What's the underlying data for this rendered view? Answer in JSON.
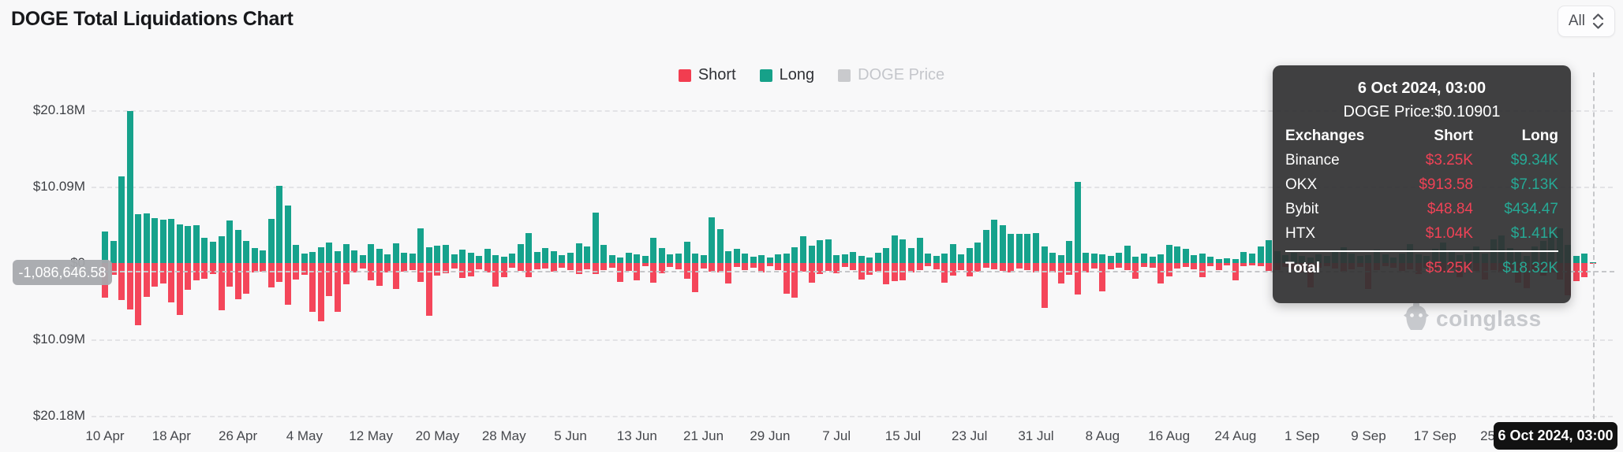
{
  "header": {
    "title": "DOGE Total Liquidations Chart",
    "range_select": {
      "value": "All"
    }
  },
  "legend": [
    {
      "label": "Short",
      "color": "#f4465a",
      "enabled": true
    },
    {
      "label": "Long",
      "color": "#16a28c",
      "enabled": true
    },
    {
      "label": "DOGE Price",
      "color": "#c9c9c9",
      "enabled": false
    }
  ],
  "crosshair": {
    "y_value_badge": "-1,086,646.58",
    "x_value_badge": "6 Oct 2024, 03:00"
  },
  "watermark": {
    "text": "coinglass"
  },
  "tooltip": {
    "title": "6 Oct 2024, 03:00",
    "price": "DOGE Price:$0.10901",
    "header": {
      "exchanges": "Exchanges",
      "short": "Short",
      "long": "Long"
    },
    "rows": [
      {
        "name": "Binance",
        "short": "$3.25K",
        "long": "$9.34K"
      },
      {
        "name": "OKX",
        "short": "$913.58",
        "long": "$7.13K"
      },
      {
        "name": "Bybit",
        "short": "$48.84",
        "long": "$434.47"
      },
      {
        "name": "HTX",
        "short": "$1.04K",
        "long": "$1.41K"
      }
    ],
    "total": {
      "name": "Total",
      "short": "$5.25K",
      "long": "$18.32K"
    }
  },
  "chart_data": {
    "type": "bar",
    "title": "DOGE Total Liquidations Chart",
    "unit": "USD millions",
    "orientation": "long bars up, short bars down (mirrored axis)",
    "x_start": "10 Apr 2024",
    "x_end": "6 Oct 2024, 03:00",
    "x_interval": "daily",
    "x_tick_labels": [
      "10 Apr",
      "18 Apr",
      "26 Apr",
      "4 May",
      "12 May",
      "20 May",
      "28 May",
      "5 Jun",
      "13 Jun",
      "21 Jun",
      "29 Jun",
      "7 Jul",
      "15 Jul",
      "23 Jul",
      "31 Jul",
      "8 Aug",
      "16 Aug",
      "24 Aug",
      "1 Sep",
      "9 Sep",
      "17 Sep",
      "25 Sep"
    ],
    "y_tick_labels": [
      "$20.18M",
      "$10.09M",
      "$0",
      "$10.09M",
      "$20.18M"
    ],
    "y_tick_values": [
      20.18,
      10.09,
      0,
      -10.09,
      -20.18
    ],
    "ylim": [
      -24,
      24
    ],
    "grid": "dashed horizontal",
    "legend_position": "top-center",
    "series_names": [
      "Short",
      "Long"
    ],
    "points_format": "[short_M, long_M] per day from 10 Apr 2024 to 6 Oct 2024",
    "points": [
      [
        4.6,
        4.2
      ],
      [
        1.6,
        2.9
      ],
      [
        4.9,
        11.4
      ],
      [
        6.1,
        20.1
      ],
      [
        8.2,
        6.4
      ],
      [
        4.5,
        6.6
      ],
      [
        3.1,
        5.9
      ],
      [
        2.7,
        5.7
      ],
      [
        5.2,
        5.8
      ],
      [
        6.9,
        5.1
      ],
      [
        3.5,
        4.9
      ],
      [
        2.3,
        5.0
      ],
      [
        2.1,
        3.3
      ],
      [
        1.5,
        2.8
      ],
      [
        6.2,
        3.5
      ],
      [
        3.1,
        5.6
      ],
      [
        4.8,
        4.4
      ],
      [
        4.1,
        2.9
      ],
      [
        1.3,
        2.0
      ],
      [
        1.1,
        1.7
      ],
      [
        3.2,
        5.8
      ],
      [
        2.5,
        10.2
      ],
      [
        5.5,
        7.6
      ],
      [
        2.2,
        2.4
      ],
      [
        1.6,
        1.3
      ],
      [
        6.5,
        1.5
      ],
      [
        7.7,
        2.1
      ],
      [
        4.4,
        2.7
      ],
      [
        6.5,
        1.6
      ],
      [
        2.8,
        2.5
      ],
      [
        1.3,
        1.7
      ],
      [
        0.7,
        1.0
      ],
      [
        2.3,
        2.5
      ],
      [
        3.0,
        1.9
      ],
      [
        1.2,
        1.1
      ],
      [
        3.4,
        2.6
      ],
      [
        1.1,
        1.4
      ],
      [
        0.9,
        1.2
      ],
      [
        2.5,
        4.6
      ],
      [
        7.0,
        2.1
      ],
      [
        1.7,
        2.3
      ],
      [
        1.4,
        2.4
      ],
      [
        0.7,
        1.1
      ],
      [
        2.0,
        1.8
      ],
      [
        1.8,
        1.4
      ],
      [
        0.8,
        0.9
      ],
      [
        1.2,
        1.9
      ],
      [
        3.1,
        1.0
      ],
      [
        1.9,
        0.8
      ],
      [
        0.6,
        1.2
      ],
      [
        1.0,
        2.5
      ],
      [
        1.9,
        4.0
      ],
      [
        0.8,
        1.5
      ],
      [
        0.7,
        2.0
      ],
      [
        1.1,
        1.6
      ],
      [
        0.6,
        1.0
      ],
      [
        0.9,
        1.4
      ],
      [
        1.5,
        2.6
      ],
      [
        0.8,
        2.2
      ],
      [
        1.5,
        6.7
      ],
      [
        0.9,
        2.4
      ],
      [
        0.6,
        1.0
      ],
      [
        2.5,
        0.7
      ],
      [
        1.0,
        1.4
      ],
      [
        2.3,
        1.1
      ],
      [
        0.4,
        0.9
      ],
      [
        2.6,
        3.3
      ],
      [
        1.4,
        2.0
      ],
      [
        0.5,
        1.1
      ],
      [
        0.8,
        1.3
      ],
      [
        2.1,
        2.8
      ],
      [
        3.9,
        1.2
      ],
      [
        0.7,
        1.0
      ],
      [
        1.1,
        6.0
      ],
      [
        1.2,
        4.5
      ],
      [
        2.7,
        1.6
      ],
      [
        0.5,
        1.9
      ],
      [
        0.9,
        1.2
      ],
      [
        0.6,
        0.8
      ],
      [
        1.3,
        1.0
      ],
      [
        0.4,
        0.7
      ],
      [
        0.9,
        1.1
      ],
      [
        4.1,
        1.3
      ],
      [
        4.6,
        2.1
      ],
      [
        1.1,
        3.5
      ],
      [
        2.6,
        2.3
      ],
      [
        1.5,
        3.0
      ],
      [
        1.0,
        3.1
      ],
      [
        1.4,
        1.0
      ],
      [
        0.5,
        1.1
      ],
      [
        0.9,
        1.5
      ],
      [
        2.2,
        0.9
      ],
      [
        1.6,
        0.7
      ],
      [
        1.1,
        1.4
      ],
      [
        2.8,
        2.0
      ],
      [
        2.4,
        3.6
      ],
      [
        2.3,
        3.1
      ],
      [
        1.3,
        2.0
      ],
      [
        0.9,
        3.3
      ],
      [
        0.4,
        1.2
      ],
      [
        0.8,
        0.9
      ],
      [
        2.6,
        1.2
      ],
      [
        1.7,
        2.5
      ],
      [
        0.9,
        1.1
      ],
      [
        1.8,
        2.0
      ],
      [
        1.1,
        2.7
      ],
      [
        0.6,
        4.4
      ],
      [
        0.8,
        5.7
      ],
      [
        1.0,
        5.0
      ],
      [
        1.2,
        3.9
      ],
      [
        0.7,
        3.8
      ],
      [
        0.9,
        3.9
      ],
      [
        1.3,
        4.0
      ],
      [
        5.9,
        2.2
      ],
      [
        1.2,
        1.4
      ],
      [
        2.7,
        1.0
      ],
      [
        1.6,
        2.9
      ],
      [
        4.2,
        10.7
      ],
      [
        1.3,
        1.4
      ],
      [
        0.7,
        1.3
      ],
      [
        3.7,
        1.1
      ],
      [
        0.8,
        0.9
      ],
      [
        0.6,
        1.4
      ],
      [
        0.9,
        2.3
      ],
      [
        2.1,
        0.8
      ],
      [
        0.5,
        1.2
      ],
      [
        0.6,
        0.8
      ],
      [
        2.7,
        1.1
      ],
      [
        1.8,
        2.4
      ],
      [
        0.7,
        2.2
      ],
      [
        0.5,
        1.9
      ],
      [
        0.8,
        1.0
      ],
      [
        1.9,
        1.2
      ],
      [
        0.4,
        0.8
      ],
      [
        0.9,
        0.5
      ],
      [
        0.3,
        0.6
      ],
      [
        2.3,
        0.5
      ],
      [
        0.4,
        1.5
      ],
      [
        0.3,
        1.2
      ],
      [
        0.4,
        2.2
      ],
      [
        1.0,
        3.0
      ],
      [
        0.9,
        1.6
      ],
      [
        0.5,
        1.0
      ],
      [
        0.8,
        1.4
      ],
      [
        1.2,
        0.9
      ],
      [
        3.2,
        0.7
      ],
      [
        0.6,
        1.1
      ],
      [
        0.4,
        0.9
      ],
      [
        0.7,
        1.6
      ],
      [
        1.1,
        2.1
      ],
      [
        0.8,
        1.2
      ],
      [
        0.5,
        0.9
      ],
      [
        3.4,
        1.0
      ],
      [
        0.9,
        1.8
      ],
      [
        0.4,
        1.1
      ],
      [
        0.6,
        0.7
      ],
      [
        1.0,
        1.3
      ],
      [
        0.8,
        2.5
      ],
      [
        1.5,
        1.1
      ],
      [
        0.6,
        0.9
      ],
      [
        0.9,
        1.9
      ],
      [
        1.2,
        2.7
      ],
      [
        0.7,
        1.5
      ],
      [
        1.9,
        1.0
      ],
      [
        0.6,
        1.3
      ],
      [
        1.0,
        2.2
      ],
      [
        2.2,
        1.2
      ],
      [
        0.9,
        3.1
      ],
      [
        1.3,
        3.6
      ],
      [
        0.8,
        2.0
      ],
      [
        2.6,
        1.5
      ],
      [
        3.3,
        0.9
      ],
      [
        1.0,
        2.2
      ],
      [
        1.7,
        2.9
      ],
      [
        1.2,
        3.8
      ],
      [
        2.2,
        4.6
      ],
      [
        4.3,
        2.4
      ],
      [
        2.4,
        0.9
      ],
      [
        1.9,
        1.2
      ],
      [
        0.005,
        0.018
      ]
    ],
    "hovered_point": {
      "date": "6 Oct 2024, 03:00",
      "short": "$5.25K",
      "long": "$18.32K",
      "doge_price": "$0.10901"
    }
  },
  "layout_meta": {
    "note": "values rendered by chart script"
  }
}
